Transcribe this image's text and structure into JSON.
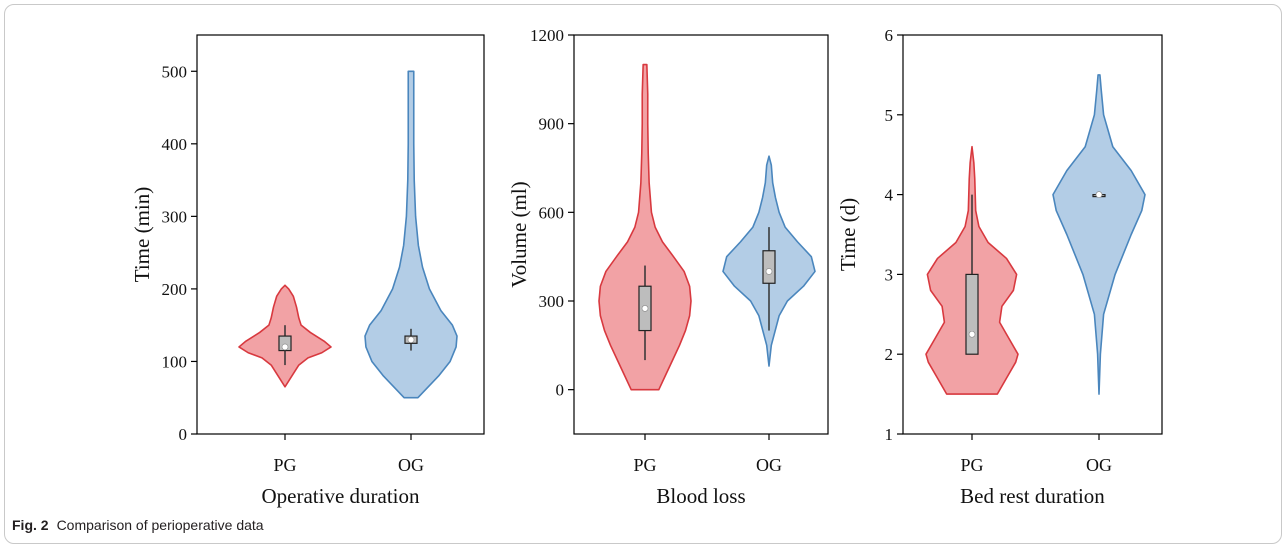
{
  "caption": {
    "label": "Fig. 2",
    "text": "Comparison of perioperative data"
  },
  "colors": {
    "pg_fill": "#f2a2a5",
    "pg_edge": "#d8393f",
    "og_fill": "#b3cde6",
    "og_edge": "#4a86bd",
    "box_fill": "#bdbdbd"
  },
  "chart_data": [
    {
      "type": "violin",
      "title": "",
      "xlabel": "Operative duration",
      "ylabel": "Time (min)",
      "ylim": [
        0,
        550
      ],
      "yticks": [
        0,
        100,
        200,
        300,
        400,
        500
      ],
      "categories": [
        "PG",
        "OG"
      ],
      "series": [
        {
          "name": "PG",
          "range": [
            65,
            205
          ],
          "q1": 115,
          "median": 120,
          "mean": 120,
          "q3": 135,
          "whisker_low": 95,
          "whisker_high": 150,
          "density": [
            [
              65,
              0
            ],
            [
              75,
              0.1
            ],
            [
              85,
              0.2
            ],
            [
              95,
              0.3
            ],
            [
              105,
              0.5
            ],
            [
              112,
              0.8
            ],
            [
              120,
              1.0
            ],
            [
              128,
              0.85
            ],
            [
              140,
              0.55
            ],
            [
              150,
              0.35
            ],
            [
              160,
              0.3
            ],
            [
              175,
              0.25
            ],
            [
              190,
              0.18
            ],
            [
              200,
              0.08
            ],
            [
              205,
              0
            ]
          ]
        },
        {
          "name": "OG",
          "range": [
            50,
            500
          ],
          "q1": 125,
          "median": 130,
          "mean": 130,
          "q3": 135,
          "whisker_low": 115,
          "whisker_high": 145,
          "density": [
            [
              50,
              0.15
            ],
            [
              60,
              0.3
            ],
            [
              80,
              0.6
            ],
            [
              100,
              0.85
            ],
            [
              120,
              0.98
            ],
            [
              135,
              1.0
            ],
            [
              150,
              0.9
            ],
            [
              170,
              0.65
            ],
            [
              200,
              0.4
            ],
            [
              230,
              0.25
            ],
            [
              260,
              0.16
            ],
            [
              300,
              0.1
            ],
            [
              350,
              0.07
            ],
            [
              400,
              0.06
            ],
            [
              450,
              0.06
            ],
            [
              500,
              0.06
            ]
          ]
        }
      ]
    },
    {
      "type": "violin",
      "title": "",
      "xlabel": "Blood loss",
      "ylabel": "Volume (ml)",
      "ylim": [
        -150,
        1200
      ],
      "yticks": [
        0,
        300,
        600,
        900,
        1200
      ],
      "categories": [
        "PG",
        "OG"
      ],
      "series": [
        {
          "name": "PG",
          "range": [
            0,
            1100
          ],
          "q1": 200,
          "median": 270,
          "mean": 275,
          "q3": 350,
          "whisker_low": 100,
          "whisker_high": 420,
          "density": [
            [
              0,
              0.3
            ],
            [
              50,
              0.45
            ],
            [
              100,
              0.6
            ],
            [
              150,
              0.75
            ],
            [
              200,
              0.88
            ],
            [
              250,
              0.97
            ],
            [
              300,
              1.0
            ],
            [
              350,
              0.97
            ],
            [
              400,
              0.85
            ],
            [
              450,
              0.62
            ],
            [
              500,
              0.38
            ],
            [
              550,
              0.22
            ],
            [
              600,
              0.14
            ],
            [
              700,
              0.09
            ],
            [
              800,
              0.07
            ],
            [
              900,
              0.06
            ],
            [
              1000,
              0.06
            ],
            [
              1100,
              0.04
            ]
          ]
        },
        {
          "name": "OG",
          "range": [
            80,
            790
          ],
          "q1": 360,
          "median": 400,
          "mean": 400,
          "q3": 470,
          "whisker_low": 200,
          "whisker_high": 550,
          "density": [
            [
              80,
              0
            ],
            [
              150,
              0.05
            ],
            [
              250,
              0.22
            ],
            [
              300,
              0.4
            ],
            [
              350,
              0.75
            ],
            [
              400,
              1.0
            ],
            [
              450,
              0.92
            ],
            [
              500,
              0.62
            ],
            [
              550,
              0.35
            ],
            [
              600,
              0.22
            ],
            [
              650,
              0.14
            ],
            [
              700,
              0.08
            ],
            [
              760,
              0.05
            ],
            [
              790,
              0
            ]
          ]
        }
      ]
    },
    {
      "type": "violin",
      "title": "",
      "xlabel": "Bed rest duration",
      "ylabel": "Time (d)",
      "ylim": [
        1,
        6
      ],
      "yticks": [
        1,
        2,
        3,
        4,
        5,
        6
      ],
      "categories": [
        "PG",
        "OG"
      ],
      "series": [
        {
          "name": "PG",
          "range": [
            1.5,
            4.6
          ],
          "q1": 2.0,
          "median": 2.25,
          "mean": 2.25,
          "q3": 3.0,
          "whisker_low": 2.0,
          "whisker_high": 4.0,
          "density": [
            [
              1.5,
              0.55
            ],
            [
              1.7,
              0.75
            ],
            [
              1.9,
              0.95
            ],
            [
              2.0,
              1.0
            ],
            [
              2.2,
              0.8
            ],
            [
              2.4,
              0.6
            ],
            [
              2.6,
              0.65
            ],
            [
              2.8,
              0.9
            ],
            [
              3.0,
              0.97
            ],
            [
              3.2,
              0.75
            ],
            [
              3.4,
              0.35
            ],
            [
              3.6,
              0.15
            ],
            [
              3.8,
              0.08
            ],
            [
              4.0,
              0.07
            ],
            [
              4.2,
              0.06
            ],
            [
              4.4,
              0.04
            ],
            [
              4.6,
              0
            ]
          ]
        },
        {
          "name": "OG",
          "range": [
            1.5,
            5.5
          ],
          "q1": 4.0,
          "median": 4.0,
          "mean": 4.0,
          "q3": 4.0,
          "whisker_low": 4.0,
          "whisker_high": 4.0,
          "density": [
            [
              1.5,
              0
            ],
            [
              2.0,
              0.03
            ],
            [
              2.5,
              0.1
            ],
            [
              3.0,
              0.35
            ],
            [
              3.5,
              0.7
            ],
            [
              3.8,
              0.93
            ],
            [
              4.0,
              1.0
            ],
            [
              4.3,
              0.7
            ],
            [
              4.6,
              0.3
            ],
            [
              5.0,
              0.1
            ],
            [
              5.3,
              0.05
            ],
            [
              5.5,
              0.02
            ]
          ]
        }
      ]
    }
  ]
}
